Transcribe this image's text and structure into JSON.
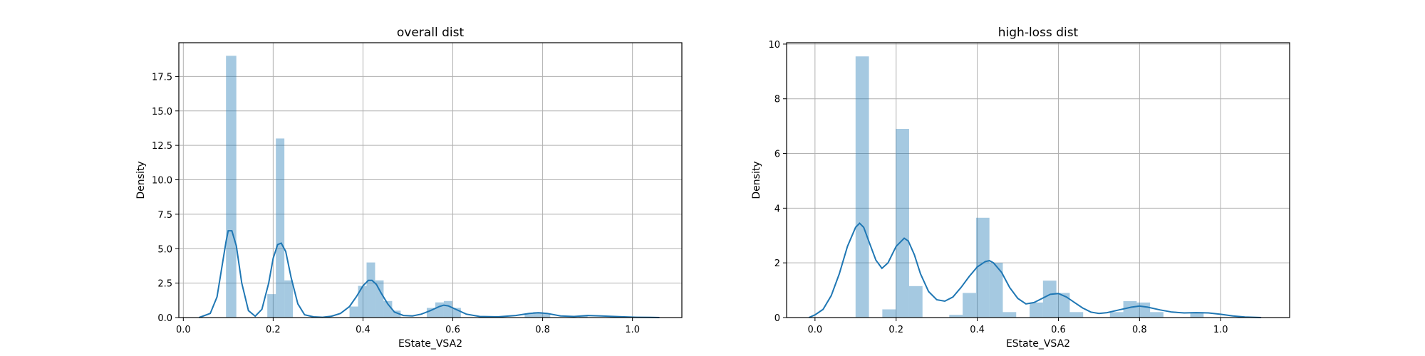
{
  "chart_data": [
    {
      "type": "bar",
      "title": "overall dist",
      "xlabel": "EState_VSA2",
      "ylabel": "Density",
      "xlim": [
        -0.01,
        1.11
      ],
      "ylim": [
        0,
        19.95
      ],
      "xticks": [
        0.0,
        0.2,
        0.4,
        0.6,
        0.8,
        1.0
      ],
      "xtick_labels": [
        "0.0",
        "0.2",
        "0.4",
        "0.6",
        "0.8",
        "1.0"
      ],
      "yticks": [
        0,
        2.5,
        5,
        7.5,
        10,
        12.5,
        15,
        17.5
      ],
      "ytick_labels": [
        "0.0",
        "2.5",
        "5.0",
        "7.5",
        "10.0",
        "12.5",
        "15.0",
        "17.5"
      ],
      "grid": true,
      "histogram": {
        "bins": [
          {
            "x0": 0.095,
            "x1": 0.118,
            "density": 19.0
          },
          {
            "x0": 0.187,
            "x1": 0.206,
            "density": 1.7
          },
          {
            "x0": 0.206,
            "x1": 0.225,
            "density": 13.0
          },
          {
            "x0": 0.225,
            "x1": 0.244,
            "density": 2.7
          },
          {
            "x0": 0.37,
            "x1": 0.389,
            "density": 0.8
          },
          {
            "x0": 0.389,
            "x1": 0.408,
            "density": 2.3
          },
          {
            "x0": 0.408,
            "x1": 0.427,
            "density": 4.0
          },
          {
            "x0": 0.427,
            "x1": 0.446,
            "density": 2.7
          },
          {
            "x0": 0.446,
            "x1": 0.465,
            "density": 1.2
          },
          {
            "x0": 0.465,
            "x1": 0.484,
            "density": 0.5
          },
          {
            "x0": 0.542,
            "x1": 0.561,
            "density": 0.7
          },
          {
            "x0": 0.561,
            "x1": 0.58,
            "density": 1.1
          },
          {
            "x0": 0.58,
            "x1": 0.599,
            "density": 1.2
          },
          {
            "x0": 0.599,
            "x1": 0.618,
            "density": 0.7
          },
          {
            "x0": 0.76,
            "x1": 0.779,
            "density": 0.3
          },
          {
            "x0": 0.779,
            "x1": 0.798,
            "density": 0.4
          },
          {
            "x0": 0.798,
            "x1": 0.817,
            "density": 0.3
          },
          {
            "x0": 0.88,
            "x1": 0.9,
            "density": 0.12
          },
          {
            "x0": 0.95,
            "x1": 0.97,
            "density": 0.1
          }
        ]
      },
      "kde": {
        "x": [
          0.035,
          0.06,
          0.075,
          0.085,
          0.095,
          0.1,
          0.108,
          0.118,
          0.13,
          0.145,
          0.16,
          0.175,
          0.19,
          0.2,
          0.21,
          0.218,
          0.228,
          0.24,
          0.255,
          0.27,
          0.29,
          0.31,
          0.33,
          0.35,
          0.37,
          0.385,
          0.4,
          0.412,
          0.42,
          0.43,
          0.44,
          0.455,
          0.47,
          0.49,
          0.51,
          0.53,
          0.55,
          0.57,
          0.58,
          0.59,
          0.61,
          0.63,
          0.66,
          0.7,
          0.74,
          0.77,
          0.79,
          0.81,
          0.84,
          0.87,
          0.9,
          0.93,
          0.97,
          1.01,
          1.04,
          1.06
        ],
        "y": [
          0.0,
          0.3,
          1.5,
          3.5,
          5.5,
          6.3,
          6.3,
          5.2,
          2.5,
          0.5,
          0.1,
          0.6,
          2.5,
          4.3,
          5.3,
          5.4,
          4.8,
          2.9,
          1.0,
          0.2,
          0.05,
          0.02,
          0.1,
          0.3,
          0.8,
          1.5,
          2.3,
          2.7,
          2.7,
          2.4,
          1.8,
          1.0,
          0.4,
          0.15,
          0.12,
          0.25,
          0.5,
          0.8,
          0.9,
          0.85,
          0.55,
          0.25,
          0.08,
          0.05,
          0.15,
          0.3,
          0.35,
          0.3,
          0.12,
          0.08,
          0.15,
          0.12,
          0.06,
          0.02,
          0.01,
          0.0
        ]
      }
    },
    {
      "type": "bar",
      "title": "high-loss dist",
      "xlabel": "EState_VSA2",
      "ylabel": "Density",
      "xlim": [
        -0.07,
        1.17
      ],
      "ylim": [
        0,
        10.05
      ],
      "xticks": [
        0.0,
        0.2,
        0.4,
        0.6,
        0.8,
        1.0
      ],
      "xtick_labels": [
        "0.0",
        "0.2",
        "0.4",
        "0.6",
        "0.8",
        "1.0"
      ],
      "yticks": [
        0,
        2,
        4,
        6,
        8,
        10
      ],
      "ytick_labels": [
        "0",
        "2",
        "4",
        "6",
        "8",
        "10"
      ],
      "grid": true,
      "histogram": {
        "bins": [
          {
            "x0": 0.1,
            "x1": 0.133,
            "density": 9.55
          },
          {
            "x0": 0.166,
            "x1": 0.199,
            "density": 0.3
          },
          {
            "x0": 0.199,
            "x1": 0.232,
            "density": 6.9
          },
          {
            "x0": 0.232,
            "x1": 0.265,
            "density": 1.15
          },
          {
            "x0": 0.331,
            "x1": 0.364,
            "density": 0.1
          },
          {
            "x0": 0.364,
            "x1": 0.397,
            "density": 0.9
          },
          {
            "x0": 0.397,
            "x1": 0.43,
            "density": 3.65
          },
          {
            "x0": 0.43,
            "x1": 0.463,
            "density": 2.0
          },
          {
            "x0": 0.463,
            "x1": 0.496,
            "density": 0.2
          },
          {
            "x0": 0.529,
            "x1": 0.562,
            "density": 0.55
          },
          {
            "x0": 0.562,
            "x1": 0.595,
            "density": 1.35
          },
          {
            "x0": 0.595,
            "x1": 0.628,
            "density": 0.9
          },
          {
            "x0": 0.628,
            "x1": 0.661,
            "density": 0.2
          },
          {
            "x0": 0.727,
            "x1": 0.76,
            "density": 0.2
          },
          {
            "x0": 0.76,
            "x1": 0.793,
            "density": 0.6
          },
          {
            "x0": 0.793,
            "x1": 0.826,
            "density": 0.55
          },
          {
            "x0": 0.826,
            "x1": 0.859,
            "density": 0.2
          },
          {
            "x0": 0.925,
            "x1": 0.958,
            "density": 0.2
          }
        ]
      },
      "kde": {
        "x": [
          -0.015,
          0.0,
          0.02,
          0.04,
          0.06,
          0.08,
          0.1,
          0.11,
          0.12,
          0.135,
          0.15,
          0.165,
          0.18,
          0.2,
          0.22,
          0.23,
          0.245,
          0.26,
          0.28,
          0.3,
          0.32,
          0.34,
          0.36,
          0.38,
          0.4,
          0.42,
          0.43,
          0.44,
          0.46,
          0.48,
          0.5,
          0.52,
          0.54,
          0.56,
          0.58,
          0.6,
          0.62,
          0.64,
          0.66,
          0.68,
          0.7,
          0.72,
          0.75,
          0.78,
          0.8,
          0.82,
          0.85,
          0.88,
          0.91,
          0.94,
          0.97,
          1.0,
          1.03,
          1.06,
          1.1
        ],
        "y": [
          0.0,
          0.1,
          0.3,
          0.8,
          1.6,
          2.6,
          3.3,
          3.45,
          3.3,
          2.7,
          2.1,
          1.8,
          2.0,
          2.6,
          2.9,
          2.8,
          2.3,
          1.6,
          0.95,
          0.65,
          0.6,
          0.75,
          1.1,
          1.5,
          1.85,
          2.05,
          2.08,
          2.0,
          1.65,
          1.1,
          0.7,
          0.5,
          0.55,
          0.7,
          0.85,
          0.88,
          0.75,
          0.55,
          0.35,
          0.2,
          0.15,
          0.18,
          0.28,
          0.38,
          0.42,
          0.38,
          0.28,
          0.2,
          0.17,
          0.18,
          0.17,
          0.12,
          0.06,
          0.02,
          0.0
        ]
      }
    }
  ]
}
